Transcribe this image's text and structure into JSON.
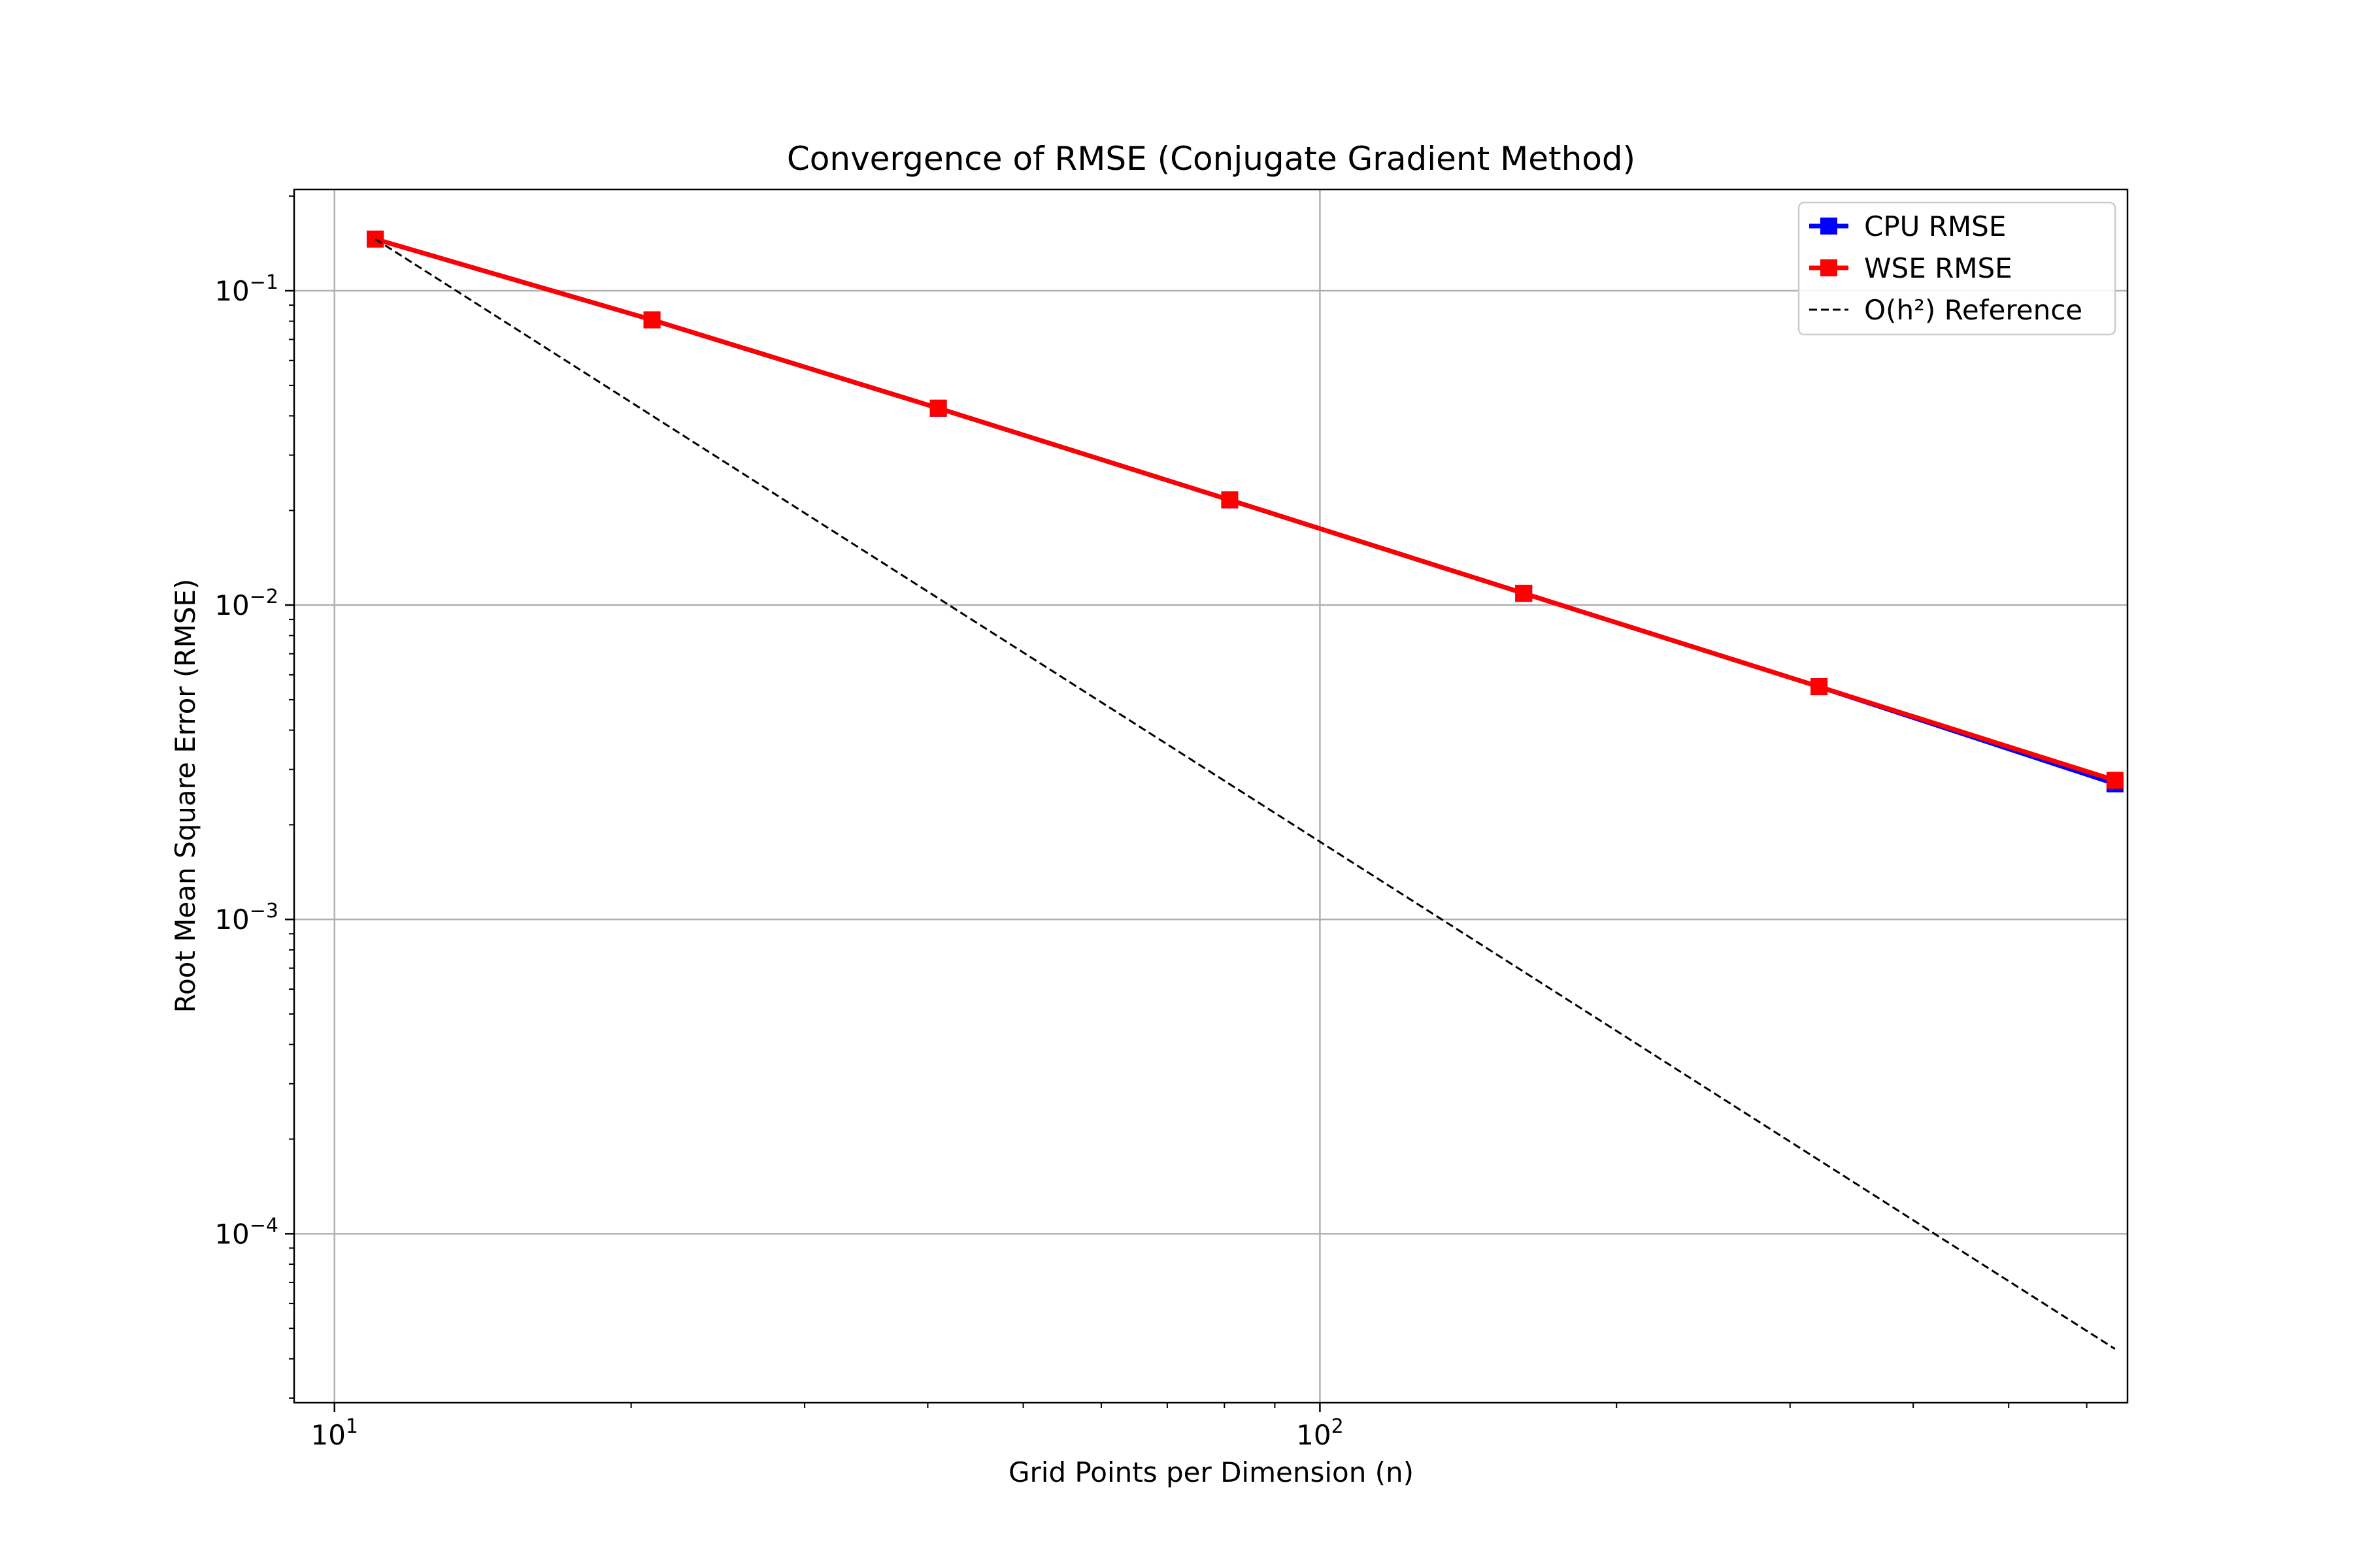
{
  "chart_data": {
    "type": "line",
    "title": "Convergence of RMSE (Conjugate Gradient Method)",
    "xlabel": "Grid Points per Dimension (n)",
    "ylabel": "Root Mean Square Error (RMSE)",
    "xscale": "log",
    "yscale": "log",
    "xlim": [
      9.1,
      660
    ],
    "ylim": [
      2.9e-05,
      0.21
    ],
    "grid": true,
    "legend_position": "top-right",
    "x_ticks": [
      {
        "value": 10,
        "base": "10",
        "exp": "1"
      },
      {
        "value": 100,
        "base": "10",
        "exp": "2"
      }
    ],
    "y_ticks": [
      {
        "value": 0.1,
        "base": "10",
        "exp": "−1"
      },
      {
        "value": 0.01,
        "base": "10",
        "exp": "−2"
      },
      {
        "value": 0.001,
        "base": "10",
        "exp": "−3"
      },
      {
        "value": 0.0001,
        "base": "10",
        "exp": "−4"
      }
    ],
    "series": [
      {
        "name": "CPU RMSE",
        "color": "#0000ff",
        "style": "solid",
        "marker": "square",
        "x": [
          11,
          21,
          41,
          81,
          161,
          321,
          641
        ],
        "y": [
          0.146,
          0.0808,
          0.0423,
          0.0216,
          0.0109,
          0.0055,
          0.0027
        ]
      },
      {
        "name": "WSE RMSE",
        "color": "#ff0000",
        "style": "solid",
        "marker": "square",
        "x": [
          11,
          21,
          41,
          81,
          161,
          321,
          641
        ],
        "y": [
          0.146,
          0.0808,
          0.0423,
          0.0216,
          0.0109,
          0.0055,
          0.00277
        ]
      },
      {
        "name": "O(h²) Reference",
        "color": "#000000",
        "style": "dashed",
        "marker": "none",
        "x": [
          11,
          641
        ],
        "y": [
          0.146,
          4.3e-05
        ]
      }
    ]
  }
}
